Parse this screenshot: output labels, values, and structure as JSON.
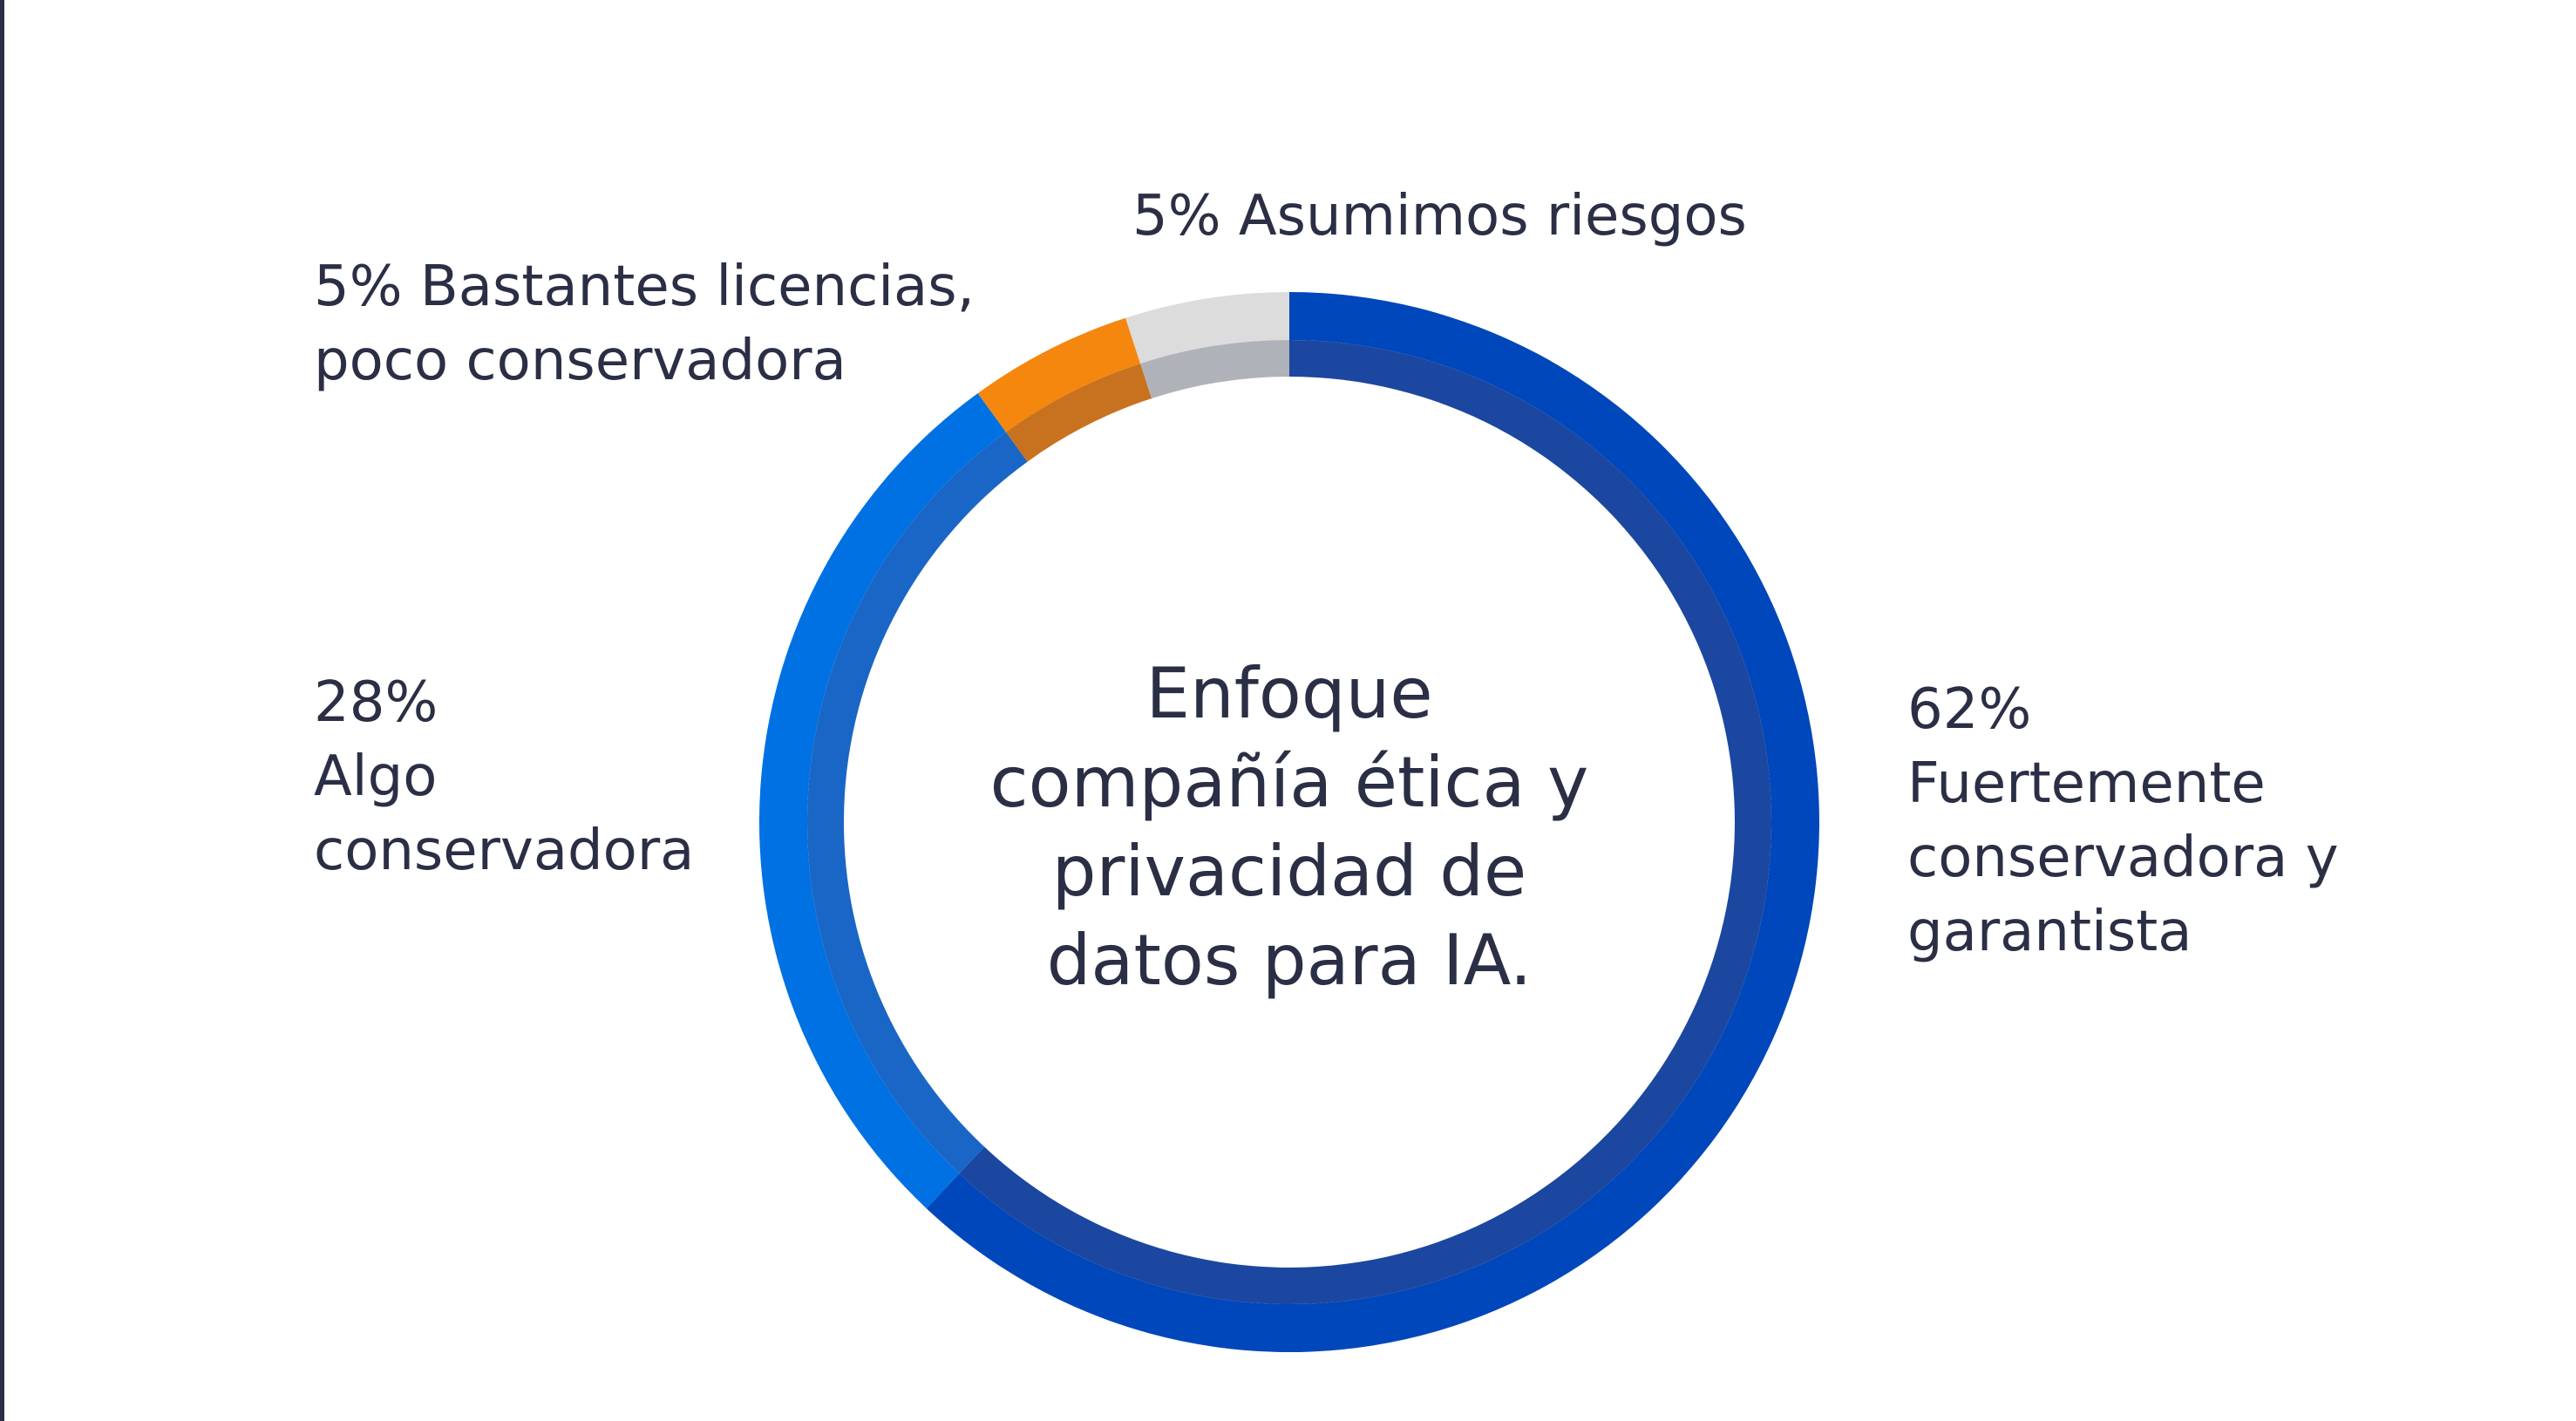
{
  "chart_data": {
    "type": "donut",
    "title": "Enfoque compañía ética y privacidad de datos para IA.",
    "categories": [
      "Fuertemente conservadora y garantista",
      "Algo conservadora",
      "Bastantes licencias, poco conservadora",
      "Asumimos riesgos"
    ],
    "values": [
      62,
      28,
      5,
      5
    ],
    "value_labels": [
      "62%",
      "28%",
      "5%",
      "5%"
    ],
    "colors": [
      "#0047bb",
      "#0071e3",
      "#f5870f",
      "#dcdcdc"
    ],
    "shade_colors": [
      "#1b47a0",
      "#1a66c6",
      "#c8721f",
      "#b0b2b9"
    ]
  }
}
